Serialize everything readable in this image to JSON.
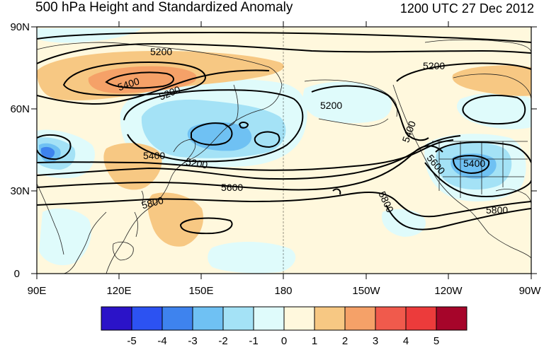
{
  "title": "500 hPa Height and Standardized Anomaly",
  "datetime": "1200 UTC 27 Dec 2012",
  "lat_labels": [
    "90N",
    "60N",
    "30N",
    "0"
  ],
  "lon_labels": [
    "90E",
    "120E",
    "150E",
    "180",
    "150W",
    "120W",
    "90W"
  ],
  "contour_labels": {
    "c5200_a": "5200",
    "c5400_a": "5400",
    "c5200_b": "5200",
    "c5200_c": "5200",
    "c5200_d": "5200",
    "c5400_b": "5400",
    "c5200_e": "5200",
    "c5400_c": "5400",
    "c5600_a": "5600",
    "c5400_d": "5400",
    "c5600_b": "5600",
    "c5800_a": "5800",
    "c5800_b": "5800",
    "c5800_c": "5800"
  },
  "colorbar": {
    "labels": [
      "-5",
      "-4",
      "-3",
      "-2",
      "-1",
      "0",
      "1",
      "2",
      "3",
      "4",
      "5"
    ],
    "colors": [
      "#2b13c8",
      "#2c52f2",
      "#3e83ee",
      "#6fc1f3",
      "#a4e2f6",
      "#dffbfb",
      "#fff8dd",
      "#f7c883",
      "#f5a168",
      "#f05a4c",
      "#ec3b3b",
      "#a6052a"
    ]
  },
  "colors": {
    "contour": "#000000",
    "coast": "#202020"
  }
}
